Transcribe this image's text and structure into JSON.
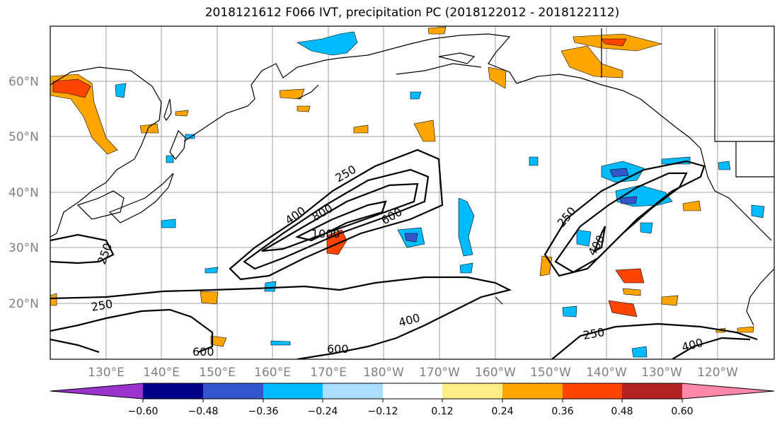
{
  "title": "2018121612 F066 IVT, precipitation PC (2018122012 - 2018122112)",
  "map": {
    "lat_labels": [
      "60°N",
      "50°N",
      "40°N",
      "30°N",
      "20°N"
    ],
    "lon_labels": [
      "130°E",
      "140°E",
      "150°E",
      "160°E",
      "170°E",
      "180°W",
      "170°W",
      "160°W",
      "150°W",
      "140°W",
      "130°W",
      "120°W"
    ],
    "contour_labels": [
      "250",
      "400",
      "800",
      "1000",
      "600",
      "250",
      "400",
      "250",
      "400",
      "600",
      "600",
      "250",
      "400"
    ]
  },
  "colorbar": {
    "colors": [
      "#9933cc",
      "#000088",
      "#3355cc",
      "#00bbff",
      "#aaddff",
      "#ffffff",
      "#ffee88",
      "#ffa500",
      "#ff4400",
      "#b22222",
      "#ff88aa"
    ],
    "tick_labels": [
      "−0.60",
      "−0.48",
      "−0.36",
      "−0.24",
      "−0.12",
      "0.12",
      "0.24",
      "0.36",
      "0.48",
      "0.60"
    ]
  }
}
